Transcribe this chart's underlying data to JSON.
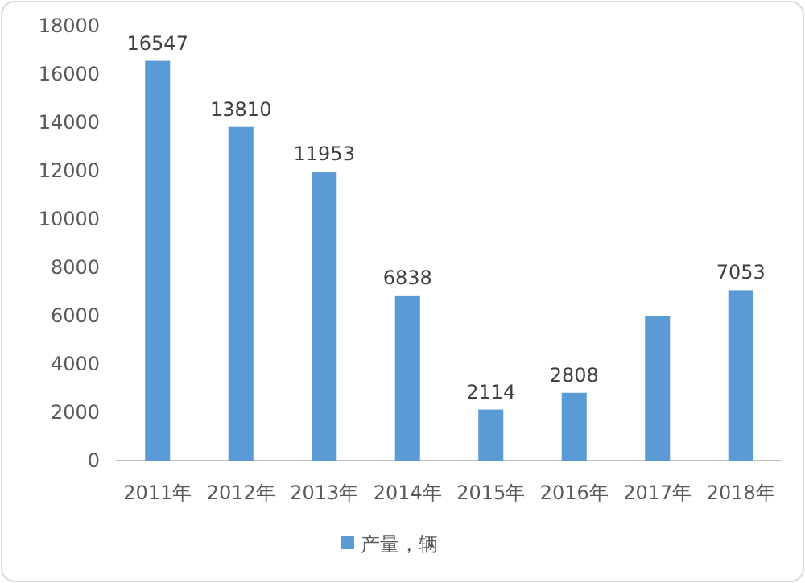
{
  "chart_data": {
    "type": "bar",
    "categories": [
      "2011年",
      "2012年",
      "2013年",
      "2014年",
      "2015年",
      "2016年",
      "2017年",
      "2018年"
    ],
    "series": [
      {
        "name": "产量，辆",
        "color": "#5b9bd5",
        "values": [
          16547,
          13810,
          11953,
          6838,
          2114,
          2808,
          6000,
          7053
        ],
        "value_labels": [
          "16547",
          "13810",
          "11953",
          "6838",
          "2114",
          "2808",
          null,
          "7053"
        ]
      }
    ],
    "ylim": [
      0,
      18000
    ],
    "yticks": [
      0,
      2000,
      4000,
      6000,
      8000,
      10000,
      12000,
      14000,
      16000,
      18000
    ],
    "grid": false,
    "legend": "bottom"
  }
}
